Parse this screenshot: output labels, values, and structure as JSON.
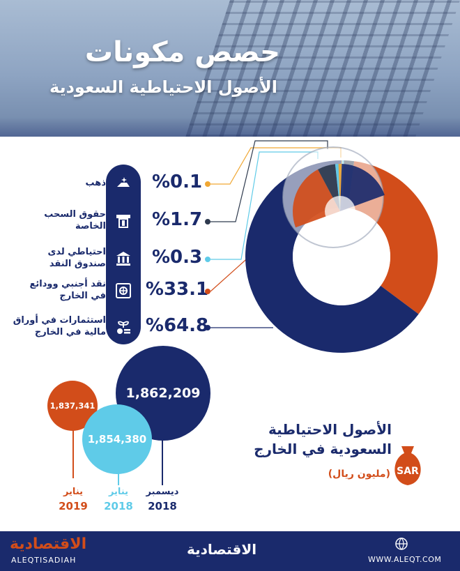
{
  "header": {
    "title": "حصص مكونات",
    "subtitle": "الأصول الاحتياطية السعودية"
  },
  "breakdown": [
    {
      "label_line1": "ذهب",
      "label_line2": "",
      "value": "%0.1",
      "pct": 0.1,
      "color": "#f0a733",
      "icon": "gold-icon"
    },
    {
      "label_line1": "حقوق السحب",
      "label_line2": "الخاصة",
      "value": "%1.7",
      "pct": 1.7,
      "color": "#2e3a4e",
      "icon": "atm-card-icon"
    },
    {
      "label_line1": "احتياطي لدى",
      "label_line2": "صندوق النقد",
      "value": "%0.3",
      "pct": 0.3,
      "color": "#5fcbe8",
      "icon": "bank-icon"
    },
    {
      "label_line1": "نقد أجنبي وودائع",
      "label_line2": "في الخارج",
      "value": "%33.1",
      "pct": 33.1,
      "color": "#d24d1a",
      "icon": "safe-icon"
    },
    {
      "label_line1": "استثمارات في أوراق",
      "label_line2": "مالية في الخارج",
      "value": "%64.8",
      "pct": 64.8,
      "color": "#1a2a6c",
      "icon": "investment-icon"
    }
  ],
  "donut_colors": {
    "investments": "#1a2a6c",
    "cash": "#d24d1a",
    "imf": "#5fcbe8",
    "sdr": "#2e3a4e",
    "gold": "#f0a733"
  },
  "reserves": {
    "title_line1": "الأصول الاحتياطية",
    "title_line2": "السعودية في الخارج",
    "unit": "(مليون ريال)",
    "currency_badge": "SAR",
    "points": [
      {
        "month": "يناير",
        "year": "2019",
        "value": "1,837,341",
        "number": 1837341,
        "color": "#d24d1a"
      },
      {
        "month": "يناير",
        "year": "2018",
        "value": "1,854,380",
        "number": 1854380,
        "color": "#5fcbe8"
      },
      {
        "month": "ديسمبر",
        "year": "2018",
        "value": "1,862,209",
        "number": 1862209,
        "color": "#1a2a6c"
      }
    ]
  },
  "footer": {
    "logo_left": "الاقتصادية",
    "logo_left_sub": "ALEQTISADIAH",
    "logo_center": "الاقتصادية",
    "website": "WWW.ALEQT.COM"
  }
}
